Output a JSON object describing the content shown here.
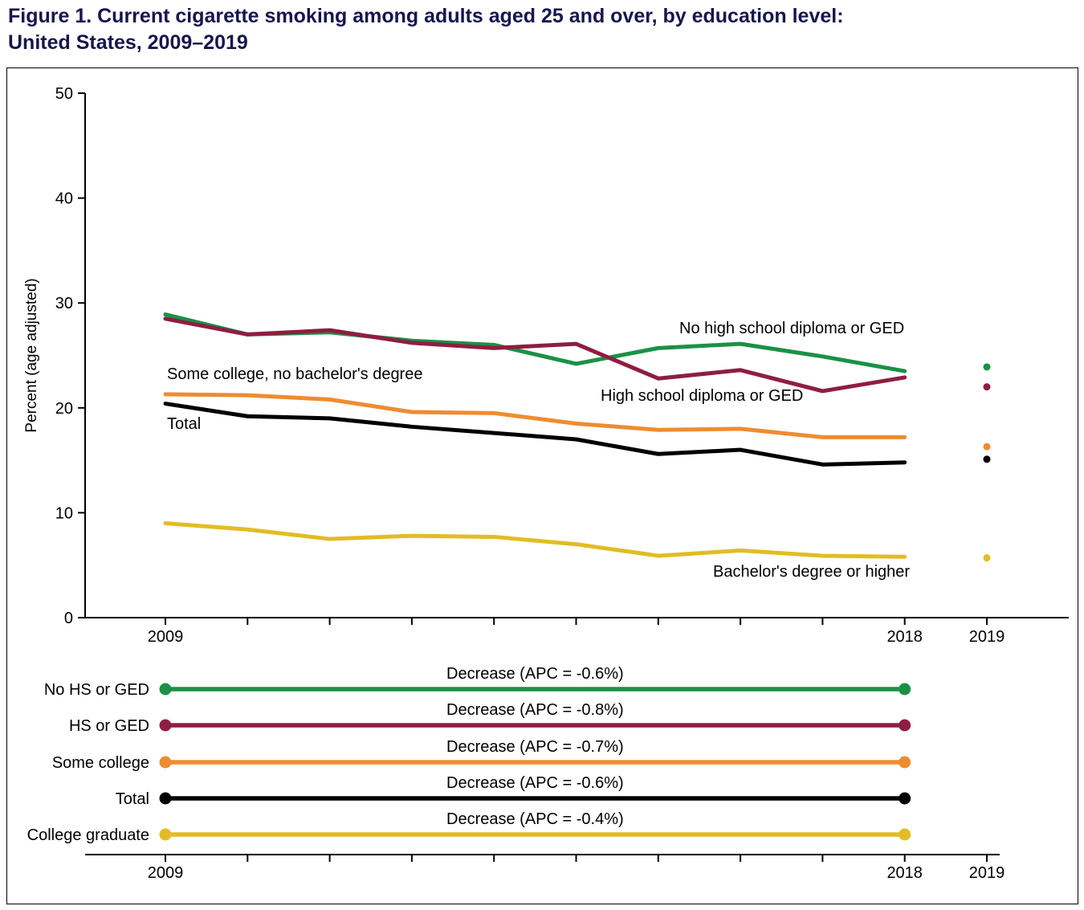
{
  "figure": {
    "title_line1": "Figure 1. Current cigarette smoking among adults aged 25 and over, by education level:",
    "title_line2": "United States, 2009–2019"
  },
  "colors": {
    "no_hs": "#1a9146",
    "hs": "#8e1e41",
    "some_college": "#ee8c31",
    "total": "#000000",
    "college_grad": "#e2bc25",
    "title": "#16164e",
    "axis": "#000000"
  },
  "chart_data": {
    "type": "line",
    "title": "Current cigarette smoking among adults aged 25 and over, by education level: United States, 2009–2019",
    "ylabel": "Percent (age adjusted)",
    "ylim": [
      0,
      50
    ],
    "yticks": [
      0,
      10,
      20,
      30,
      40,
      50
    ],
    "x": [
      2009,
      2010,
      2011,
      2012,
      2013,
      2014,
      2015,
      2016,
      2017,
      2018
    ],
    "x_2019": 2019,
    "xtick_labels": [
      "2009",
      "2018",
      "2019"
    ],
    "grid": false,
    "legend_position": "inline-annotations",
    "series": [
      {
        "name": "No high school diploma or GED",
        "label": "No high school diploma or GED",
        "color_key": "no_hs",
        "values": [
          28.9,
          27.0,
          27.2,
          26.4,
          26.0,
          24.2,
          25.7,
          26.1,
          24.9,
          23.5
        ],
        "value_2019": 23.9
      },
      {
        "name": "High school diploma or GED",
        "label": "High school diploma or GED",
        "color_key": "hs",
        "values": [
          28.5,
          27.0,
          27.4,
          26.2,
          25.7,
          26.1,
          22.8,
          23.6,
          21.6,
          22.9
        ],
        "value_2019": 22.0
      },
      {
        "name": "Some college, no bachelor's degree",
        "label": "Some college, no bachelor's degree",
        "color_key": "some_college",
        "values": [
          21.3,
          21.2,
          20.8,
          19.6,
          19.5,
          18.5,
          17.9,
          18.0,
          17.2,
          17.2
        ],
        "value_2019": 16.3
      },
      {
        "name": "Total",
        "label": "Total",
        "color_key": "total",
        "values": [
          20.4,
          19.2,
          19.0,
          18.2,
          17.6,
          17.0,
          15.6,
          16.0,
          14.6,
          14.8
        ],
        "value_2019": 15.1
      },
      {
        "name": "Bachelor's degree or higher",
        "label": "Bachelor's degree or higher",
        "color_key": "college_grad",
        "values": [
          9.0,
          8.4,
          7.5,
          7.8,
          7.7,
          7.0,
          5.9,
          6.4,
          5.9,
          5.8
        ],
        "value_2019": 5.7
      }
    ],
    "trend_panel": {
      "rows": [
        {
          "label": "No HS or GED",
          "annotation": "Decrease (APC = -0.6%)",
          "color_key": "no_hs"
        },
        {
          "label": "HS or GED",
          "annotation": "Decrease (APC = -0.8%)",
          "color_key": "hs"
        },
        {
          "label": "Some college",
          "annotation": "Decrease (APC = -0.7%)",
          "color_key": "some_college"
        },
        {
          "label": "Total",
          "annotation": "Decrease (APC = -0.6%)",
          "color_key": "total"
        },
        {
          "label": "College graduate",
          "annotation": "Decrease (APC = -0.4%)",
          "color_key": "college_grad"
        }
      ],
      "xtick_labels": [
        "2009",
        "2018",
        "2019"
      ]
    }
  }
}
